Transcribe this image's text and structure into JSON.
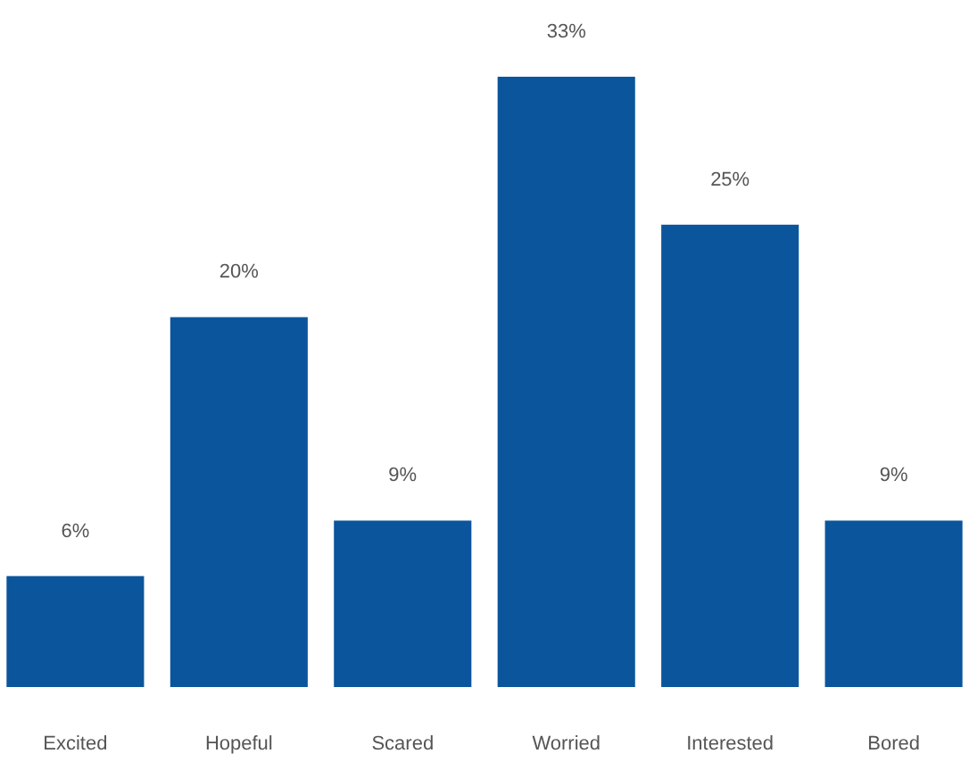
{
  "chart_data": {
    "type": "bar",
    "categories": [
      "Excited",
      "Hopeful",
      "Scared",
      "Worried",
      "Interested",
      "Bored"
    ],
    "values": [
      6,
      20,
      9,
      33,
      25,
      9
    ],
    "value_labels": [
      "6%",
      "20%",
      "9%",
      "33%",
      "25%",
      "9%"
    ],
    "color": "#0b559c"
  }
}
